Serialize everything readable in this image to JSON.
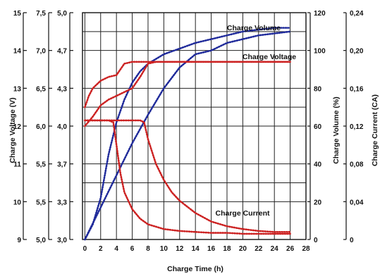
{
  "chart_data": {
    "type": "line",
    "xlabel": "Charge Time (h)",
    "xlim": [
      -0.3,
      28
    ],
    "x_ticks": [
      "0",
      "2",
      "4",
      "6",
      "8",
      "10",
      "12",
      "14",
      "16",
      "18",
      "20",
      "22",
      "24",
      "26",
      "28"
    ],
    "left_axes": [
      {
        "label": "Charge Voltage (V)",
        "ticks": [
          "15",
          "14",
          "13",
          "12",
          "11",
          "10",
          "9"
        ]
      },
      {
        "label": "",
        "ticks": [
          "7,5",
          "7,0",
          "6,5",
          "6,0",
          "5,5",
          "5,5",
          "5,0"
        ]
      },
      {
        "label": "",
        "ticks": [
          "5,0",
          "4,7",
          "4,3",
          "4,0",
          "3,7",
          "3,3",
          "3,0"
        ]
      }
    ],
    "right_axes": [
      {
        "label": "Charge Volume (%)",
        "ticks": [
          "120",
          "100",
          "80",
          "60",
          "40",
          "20",
          "0"
        ],
        "ylim": [
          0,
          120
        ]
      },
      {
        "label": "Charge Current (CA)",
        "ticks": [
          "0,24",
          "0,20",
          "0,16",
          "0,12",
          "0,08",
          "0,04",
          "0"
        ],
        "ylim": [
          0,
          0.24
        ]
      }
    ],
    "annotations": [
      "Charge Volume",
      "Charge Voltage",
      "Charge Current"
    ],
    "grid": true,
    "series": [
      {
        "name": "Charge Volume",
        "color": "#1f2a9a",
        "axis": "volume",
        "x": [
          0,
          1,
          2,
          3,
          4,
          5,
          6,
          7,
          8,
          10,
          12,
          14,
          16,
          18,
          20,
          22,
          24,
          26
        ],
        "y": [
          0,
          8,
          22,
          45,
          62,
          74,
          83,
          89,
          93,
          98,
          101,
          104,
          106,
          108,
          110,
          111,
          112,
          112
        ]
      },
      {
        "name": "Charge Volume",
        "color": "#1f2a9a",
        "axis": "volume",
        "x": [
          0,
          2,
          4,
          6,
          8,
          10,
          12,
          14,
          16,
          18,
          20,
          22,
          24,
          26
        ],
        "y": [
          0,
          17,
          34,
          51,
          66,
          80,
          91,
          98,
          100,
          104,
          106,
          108,
          109,
          110
        ]
      },
      {
        "name": "Charge Voltage",
        "color": "#cc2222",
        "axis": "volume",
        "x": [
          0,
          0.5,
          1,
          2,
          3,
          4,
          5,
          6,
          8,
          10,
          14,
          18,
          22,
          26
        ],
        "y": [
          70,
          76,
          80,
          84,
          86,
          87,
          93,
          94,
          94,
          94,
          94,
          94,
          94,
          94
        ]
      },
      {
        "name": "Charge Voltage",
        "color": "#cc2222",
        "axis": "volume",
        "x": [
          0,
          1,
          2,
          3,
          4,
          5,
          6,
          7,
          8,
          9,
          10,
          14,
          18,
          22,
          26
        ],
        "y": [
          60,
          65,
          71,
          74,
          76,
          78,
          80,
          86,
          93,
          94,
          94,
          94,
          94,
          94,
          94
        ]
      },
      {
        "name": "Charge Current",
        "color": "#cc2222",
        "axis": "current",
        "x": [
          0,
          1,
          2,
          3,
          3.6,
          4,
          4.5,
          5,
          6,
          7,
          8,
          10,
          12,
          14,
          16,
          18,
          20,
          22,
          24,
          26
        ],
        "y": [
          0.126,
          0.126,
          0.126,
          0.126,
          0.124,
          0.1,
          0.07,
          0.05,
          0.032,
          0.022,
          0.016,
          0.011,
          0.009,
          0.008,
          0.007,
          0.007,
          0.006,
          0.006,
          0.006,
          0.006
        ]
      },
      {
        "name": "Charge Current",
        "color": "#cc2222",
        "axis": "current",
        "x": [
          0,
          2,
          4,
          6,
          7,
          7.5,
          8,
          9,
          10,
          11,
          12,
          14,
          16,
          18,
          20,
          22,
          24,
          26
        ],
        "y": [
          0.126,
          0.126,
          0.126,
          0.126,
          0.126,
          0.124,
          0.106,
          0.08,
          0.063,
          0.05,
          0.041,
          0.028,
          0.019,
          0.014,
          0.011,
          0.009,
          0.008,
          0.008
        ]
      }
    ]
  }
}
